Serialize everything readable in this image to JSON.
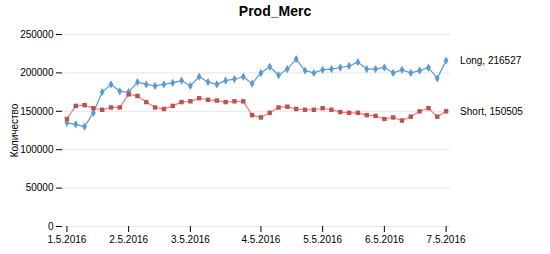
{
  "chart_data": {
    "type": "line",
    "title": "Prod_Merc",
    "ylabel": "Количество",
    "categories": [
      "1.5.2016",
      null,
      null,
      null,
      null,
      null,
      null,
      "2.5.2016",
      null,
      null,
      null,
      null,
      null,
      null,
      "3.5.2016",
      null,
      null,
      null,
      null,
      null,
      null,
      null,
      "4.5.2016",
      null,
      null,
      null,
      null,
      null,
      null,
      "5.5.2016",
      null,
      null,
      null,
      null,
      null,
      null,
      "6.5.2016",
      null,
      null,
      null,
      null,
      null,
      null,
      "7.5.2016"
    ],
    "series": [
      {
        "color": "#5B9BD5",
        "marker_color": "#5B9BD5",
        "marker": "diamond",
        "annotation": "Long, 216527",
        "annotation_color": "#BDD7EE",
        "values": [
          135000,
          133000,
          130000,
          148000,
          175000,
          185000,
          176000,
          175000,
          188000,
          185000,
          183000,
          185000,
          187000,
          190000,
          183000,
          195000,
          188000,
          185000,
          190000,
          192000,
          195000,
          186000,
          200000,
          208000,
          197000,
          205000,
          218000,
          203000,
          200000,
          204000,
          205000,
          207000,
          209000,
          214000,
          205000,
          205000,
          207000,
          200000,
          204000,
          200000,
          203000,
          207000,
          193000,
          216000
        ]
      },
      {
        "color": "#ED7D7D",
        "marker_color": "#C0504D",
        "marker": "square",
        "annotation": "Short, 150505",
        "annotation_color": "#F4CCCC",
        "values": [
          140000,
          157000,
          158000,
          154000,
          152000,
          155000,
          155000,
          172000,
          170000,
          162000,
          155000,
          153000,
          157000,
          162000,
          163000,
          167000,
          165000,
          164000,
          162000,
          163000,
          163000,
          145000,
          142000,
          148000,
          155000,
          156000,
          153000,
          152000,
          152000,
          154000,
          152000,
          149000,
          148000,
          148000,
          145000,
          144000,
          140000,
          142000,
          138000,
          143000,
          150000,
          154000,
          143000,
          150000
        ]
      }
    ],
    "ylim": [
      0,
      250000
    ],
    "yticks": [
      0,
      50000,
      100000,
      150000,
      200000,
      250000
    ],
    "grid": true
  }
}
